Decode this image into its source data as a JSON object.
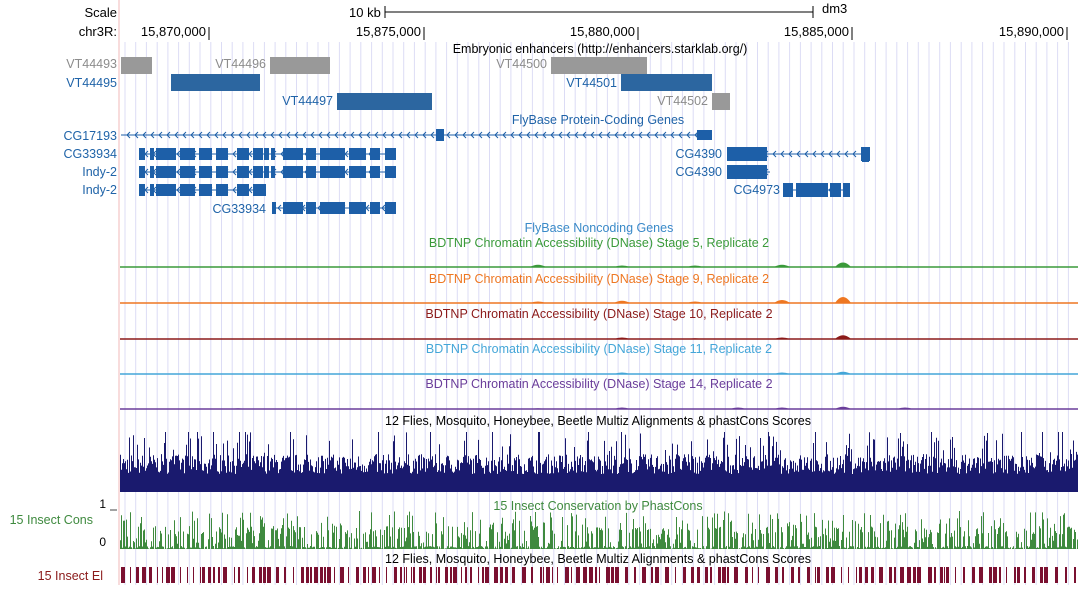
{
  "ruler": {
    "scale_label": "Scale",
    "scale_bar": "10 kb",
    "assembly": "dm3",
    "chrom_label": "chr3R:",
    "ticks": [
      "15,870,000",
      "15,875,000",
      "15,880,000",
      "15,885,000",
      "15,890,000"
    ]
  },
  "tracks": {
    "enhancers": {
      "title": "Embryonic enhancers (http://enhancers.starklab.org/)",
      "features": [
        {
          "name": "VT44493",
          "color": "#999999"
        },
        {
          "name": "VT44495",
          "color": "#2c66a0"
        },
        {
          "name": "VT44496",
          "color": "#999999"
        },
        {
          "name": "VT44497",
          "color": "#2c66a0"
        },
        {
          "name": "VT44500",
          "color": "#999999"
        },
        {
          "name": "VT44501",
          "color": "#2c66a0"
        },
        {
          "name": "VT44502",
          "color": "#999999"
        }
      ]
    },
    "protein_coding": {
      "title": "FlyBase Protein-Coding Genes",
      "genes": [
        "CG17193",
        "CG33934",
        "Indy-2",
        "Indy-2",
        "CG33934",
        "CG4390",
        "CG4390",
        "CG4973"
      ]
    },
    "noncoding": {
      "title": "FlyBase Noncoding Genes"
    },
    "dnase": [
      {
        "title": "BDTNP Chromatin Accessibility (DNase) Stage 5, Replicate 2",
        "color": "#3a9a3a"
      },
      {
        "title": "BDTNP Chromatin Accessibility (DNase) Stage 9, Replicate 2",
        "color": "#ee7722"
      },
      {
        "title": "BDTNP Chromatin Accessibility (DNase) Stage 10, Replicate 2",
        "color": "#8b1a1a"
      },
      {
        "title": "BDTNP Chromatin Accessibility (DNase) Stage 11, Replicate 2",
        "color": "#44a6d8"
      },
      {
        "title": "BDTNP Chromatin Accessibility (DNase) Stage 14, Replicate 2",
        "color": "#6a3d9a"
      }
    ],
    "multiz": {
      "title": "12 Flies, Mosquito, Honeybee, Beetle Multiz Alignments & phastCons Scores",
      "color": "#1a1a6e"
    },
    "phastcons": {
      "title": "15 Insect Conservation by PhastCons",
      "side_label": "15 Insect Cons",
      "y_max": "1",
      "y_min": "0",
      "color": "#3f8a3f"
    },
    "elements": {
      "title": "12 Flies, Mosquito, Honeybee, Beetle Multiz Alignments & phastCons Scores",
      "side_label": "15 Insect El",
      "color": "#7a1030"
    }
  }
}
